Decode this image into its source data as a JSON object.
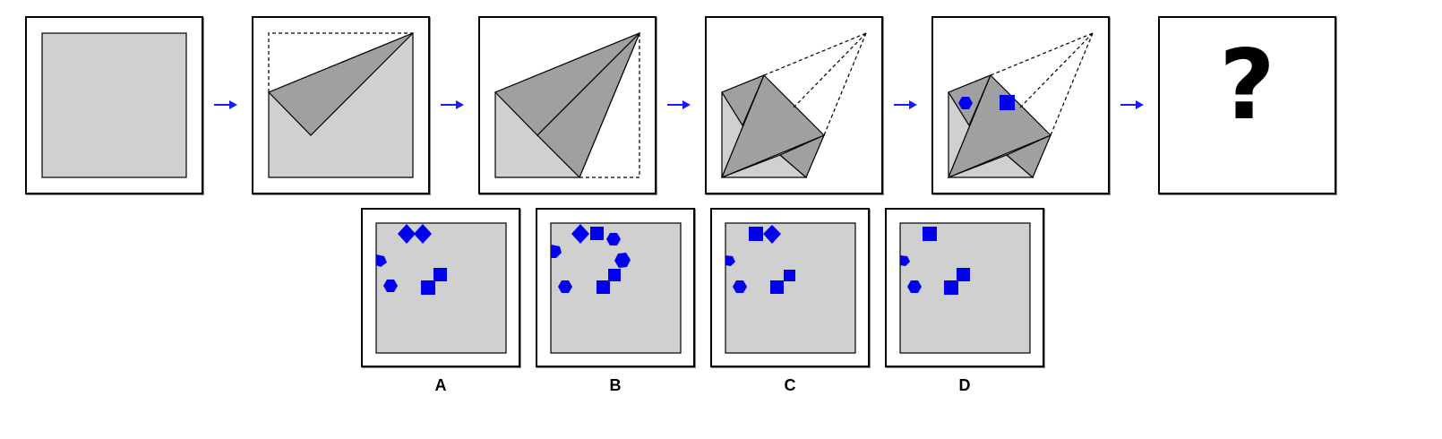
{
  "question_mark": "?",
  "options": [
    {
      "label": "A"
    },
    {
      "label": "B"
    },
    {
      "label": "C"
    },
    {
      "label": "D"
    }
  ],
  "colors": {
    "paper": "#d0d0d0",
    "fold": "#a0a0a0",
    "shape": "#0000ee",
    "arrow": "#1a1aff"
  }
}
